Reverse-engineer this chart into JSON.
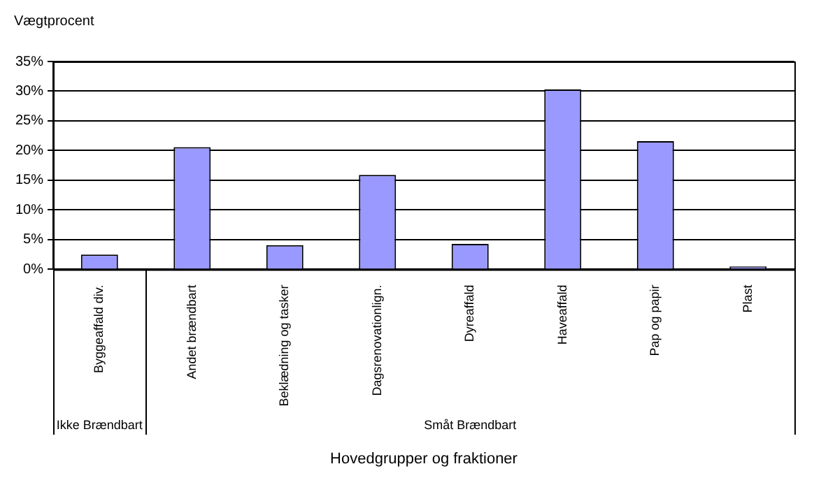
{
  "chart_data": {
    "type": "bar",
    "ylabel": "Vægtprocent",
    "xlabel": "Hovedgrupper og fraktioner",
    "categories": [
      "Byggeaffald div.",
      "Andet brændbart",
      "Beklædning og tasker",
      "Dagsrenovationlign.",
      "Dyreaffald",
      "Haveaffald",
      "Pap og papir",
      "Plast"
    ],
    "values": [
      2.5,
      20.6,
      4.1,
      15.9,
      4.3,
      30.3,
      21.6,
      0.5
    ],
    "color": "#9999ff",
    "ylim": [
      0,
      35
    ],
    "yticks": [
      {
        "value": 0,
        "label": "0%"
      },
      {
        "value": 5,
        "label": "5%"
      },
      {
        "value": 10,
        "label": "10%"
      },
      {
        "value": 15,
        "label": "15%"
      },
      {
        "value": 20,
        "label": "20%"
      },
      {
        "value": 25,
        "label": "25%"
      },
      {
        "value": 30,
        "label": "30%"
      },
      {
        "value": 35,
        "label": "35%"
      }
    ],
    "grid": "y",
    "legend": false,
    "annotations": [
      "Ikke Brændbart",
      "Småt Brændbart"
    ]
  }
}
